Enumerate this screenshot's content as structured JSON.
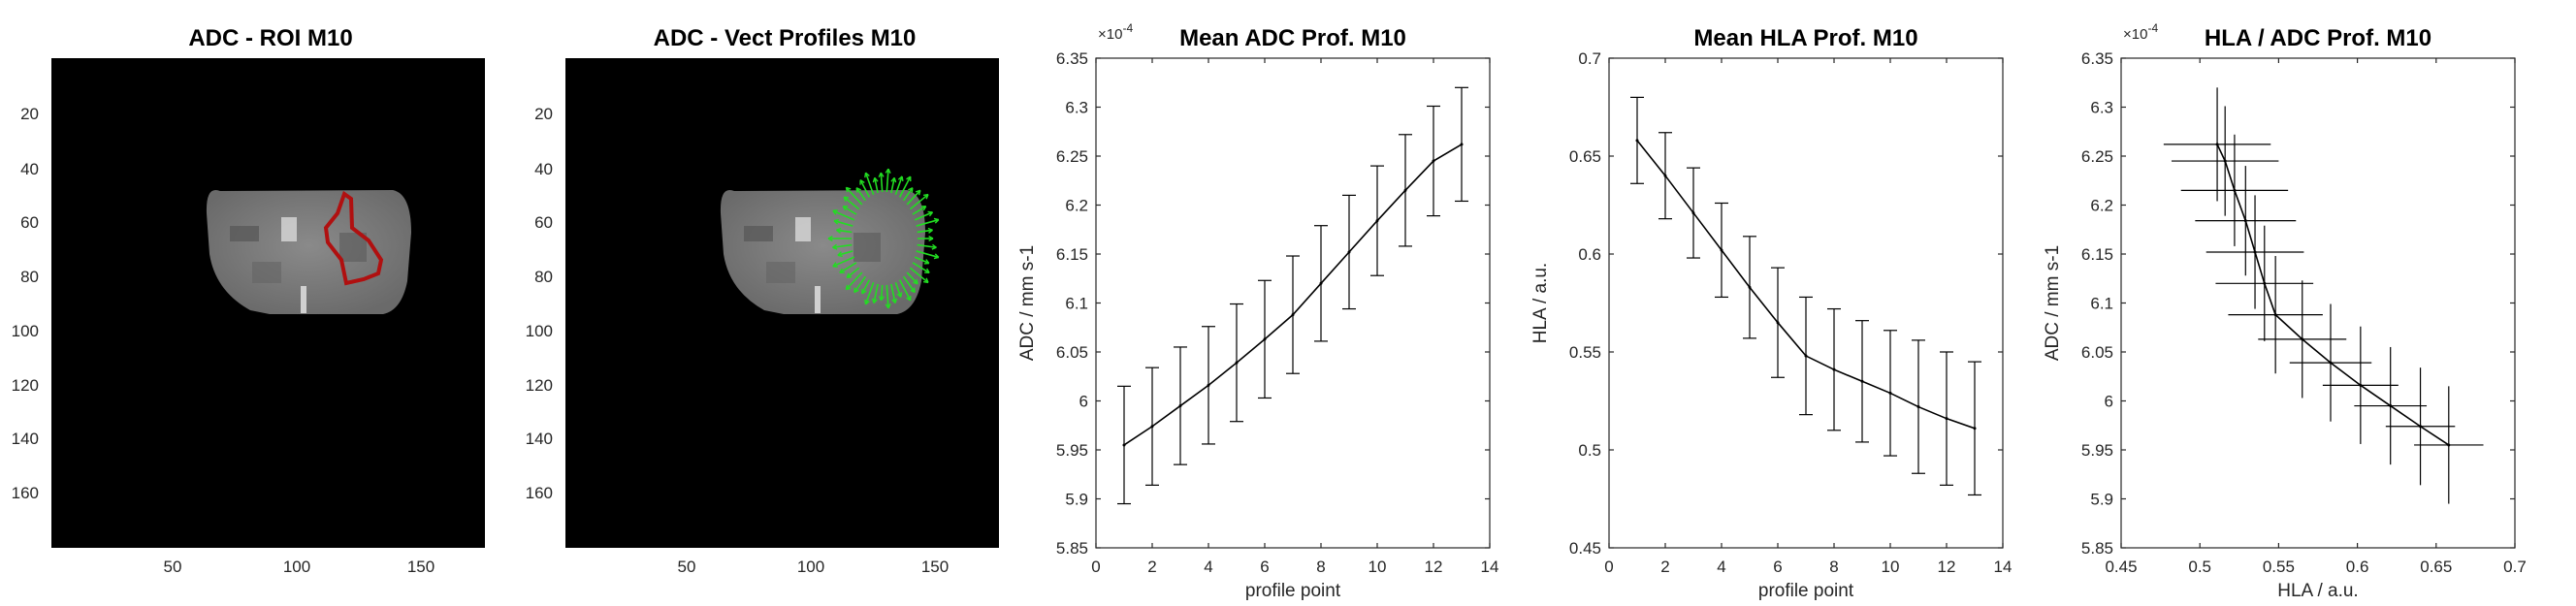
{
  "figure": {
    "panels": [
      {
        "id": "roi",
        "title": "ADC - ROI M10",
        "x_ticks": [
          "50",
          "100",
          "150"
        ],
        "y_ticks": [
          "20",
          "40",
          "60",
          "80",
          "100",
          "120",
          "140",
          "160"
        ]
      },
      {
        "id": "vect",
        "title": "ADC - Vect Profiles M10",
        "x_ticks": [
          "50",
          "100",
          "150"
        ],
        "y_ticks": [
          "20",
          "40",
          "60",
          "80",
          "100",
          "120",
          "140",
          "160"
        ]
      }
    ],
    "colors": {
      "roi_outline": "#b01010",
      "vectors": "#22dd22",
      "image_bg": "#000000",
      "brain_tissue": "#777777",
      "axis": "#262626",
      "line": "#000000"
    }
  },
  "chart_data": [
    {
      "type": "line",
      "title": "Mean ADC Prof. M10",
      "xlabel": "profile point",
      "ylabel": "ADC / mm s-1",
      "y_exponent_label": "×10",
      "y_exponent_power": "-4",
      "xlim": [
        0,
        14
      ],
      "ylim": [
        5.85,
        6.35
      ],
      "x_ticks": [
        0,
        2,
        4,
        6,
        8,
        10,
        12,
        14
      ],
      "x_tick_labels": [
        "0",
        "2",
        "4",
        "6",
        "8",
        "10",
        "12",
        "14"
      ],
      "y_ticks": [
        5.85,
        5.9,
        5.95,
        6,
        6.05,
        6.1,
        6.15,
        6.2,
        6.25,
        6.3,
        6.35
      ],
      "y_tick_labels": [
        "5.85",
        "5.9",
        "5.95",
        "6",
        "6.05",
        "6.1",
        "6.15",
        "6.2",
        "6.25",
        "6.3",
        "6.35"
      ],
      "x": [
        1,
        2,
        3,
        4,
        5,
        6,
        7,
        8,
        9,
        10,
        11,
        12,
        13
      ],
      "y": [
        5.955,
        5.974,
        5.995,
        6.016,
        6.039,
        6.063,
        6.088,
        6.12,
        6.152,
        6.184,
        6.215,
        6.245,
        6.262
      ],
      "err": [
        0.06,
        0.06,
        0.06,
        0.06,
        0.06,
        0.06,
        0.06,
        0.059,
        0.058,
        0.056,
        0.057,
        0.056,
        0.058
      ]
    },
    {
      "type": "line",
      "title": "Mean HLA Prof. M10",
      "xlabel": "profile point",
      "ylabel": "HLA / a.u.",
      "xlim": [
        0,
        14
      ],
      "ylim": [
        0.45,
        0.7
      ],
      "x_ticks": [
        0,
        2,
        4,
        6,
        8,
        10,
        12,
        14
      ],
      "x_tick_labels": [
        "0",
        "2",
        "4",
        "6",
        "8",
        "10",
        "12",
        "14"
      ],
      "y_ticks": [
        0.45,
        0.5,
        0.55,
        0.6,
        0.65,
        0.7
      ],
      "y_tick_labels": [
        "0.45",
        "0.5",
        "0.55",
        "0.6",
        "0.65",
        "0.7"
      ],
      "x": [
        1,
        2,
        3,
        4,
        5,
        6,
        7,
        8,
        9,
        10,
        11,
        12,
        13
      ],
      "y": [
        0.658,
        0.64,
        0.621,
        0.602,
        0.583,
        0.565,
        0.548,
        0.541,
        0.535,
        0.529,
        0.522,
        0.516,
        0.511
      ],
      "err": [
        0.022,
        0.022,
        0.023,
        0.024,
        0.026,
        0.028,
        0.03,
        0.031,
        0.031,
        0.032,
        0.034,
        0.034,
        0.034
      ]
    },
    {
      "type": "scatter",
      "title": "HLA / ADC Prof. M10",
      "xlabel": "HLA / a.u.",
      "ylabel": "ADC / mm s-1",
      "y_exponent_label": "×10",
      "y_exponent_power": "-4",
      "xlim": [
        0.45,
        0.7
      ],
      "ylim": [
        5.85,
        6.35
      ],
      "x_ticks": [
        0.45,
        0.5,
        0.55,
        0.6,
        0.65,
        0.7
      ],
      "x_tick_labels": [
        "0.45",
        "0.5",
        "0.55",
        "0.6",
        "0.65",
        "0.7"
      ],
      "y_ticks": [
        5.85,
        5.9,
        5.95,
        6,
        6.05,
        6.1,
        6.15,
        6.2,
        6.25,
        6.3,
        6.35
      ],
      "y_tick_labels": [
        "5.85",
        "5.9",
        "5.95",
        "6",
        "6.05",
        "6.1",
        "6.15",
        "6.2",
        "6.25",
        "6.3",
        "6.35"
      ],
      "x": [
        0.511,
        0.516,
        0.522,
        0.529,
        0.535,
        0.541,
        0.548,
        0.565,
        0.583,
        0.602,
        0.621,
        0.64,
        0.658
      ],
      "y": [
        6.262,
        6.245,
        6.215,
        6.184,
        6.152,
        6.12,
        6.088,
        6.063,
        6.039,
        6.016,
        5.995,
        5.974,
        5.955
      ],
      "xerr": [
        0.034,
        0.034,
        0.034,
        0.032,
        0.031,
        0.031,
        0.03,
        0.028,
        0.026,
        0.024,
        0.023,
        0.022,
        0.022
      ],
      "yerr": [
        0.058,
        0.056,
        0.057,
        0.056,
        0.058,
        0.059,
        0.06,
        0.06,
        0.06,
        0.06,
        0.06,
        0.06,
        0.06
      ]
    }
  ]
}
